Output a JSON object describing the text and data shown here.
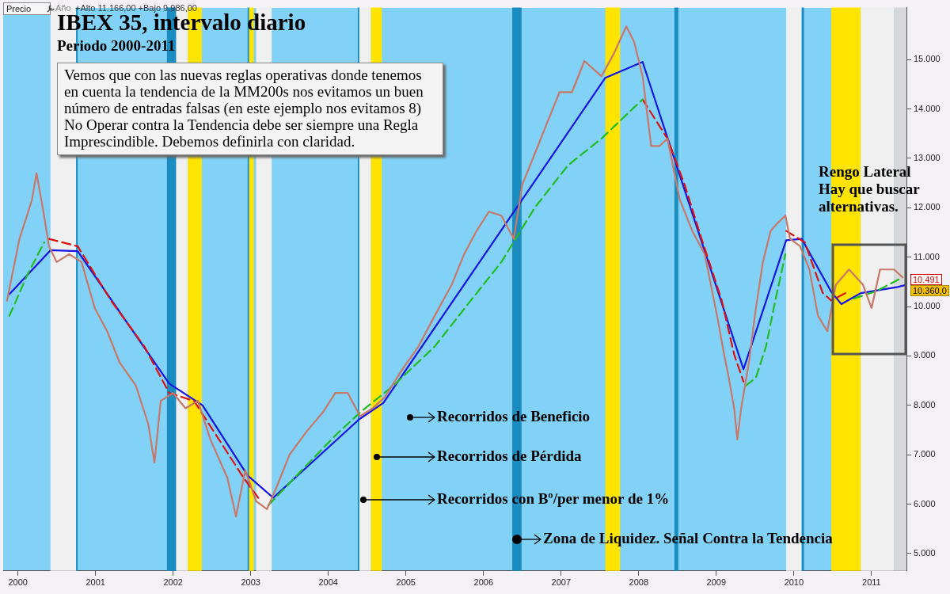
{
  "chart_data": {
    "type": "line",
    "title": "IBEX 35, intervalo diario",
    "subtitle": "Periodo 2000-2011",
    "xlim": [
      1999.81,
      2011.45
    ],
    "ylim": [
      4650,
      16050
    ],
    "xticks": [
      2000,
      2001,
      2002,
      2003,
      2004,
      2005,
      2006,
      2007,
      2008,
      2009,
      2010,
      2011
    ],
    "yticks": [
      {
        "value": 5000,
        "label": "5.000"
      },
      {
        "value": 6000,
        "label": "6.000"
      },
      {
        "value": 7000,
        "label": "7.000"
      },
      {
        "value": 8000,
        "label": "8.000"
      },
      {
        "value": 9000,
        "label": "9.000"
      },
      {
        "value": 10000,
        "label": "10.000"
      },
      {
        "value": 11000,
        "label": "11.000"
      },
      {
        "value": 12000,
        "label": "12.000"
      },
      {
        "value": 13000,
        "label": "13.000"
      },
      {
        "value": 14000,
        "label": "14.000"
      },
      {
        "value": 15000,
        "label": "15.000"
      }
    ],
    "legend": false,
    "marker": "none",
    "series": [
      {
        "type": "line",
        "color": "#c87868",
        "line_style": "solid",
        "x": [
          1999.86,
          2000.02,
          2000.18,
          2000.24,
          2000.32,
          2000.4,
          2000.5,
          2000.66,
          2000.82,
          2000.99,
          2001.15,
          2001.31,
          2001.52,
          2001.68,
          2001.76,
          2001.84,
          2002.0,
          2002.16,
          2002.32,
          2002.48,
          2002.7,
          2002.81,
          2002.93,
          2003.07,
          2003.21,
          2003.34,
          2003.5,
          2003.72,
          2003.93,
          2004.09,
          2004.25,
          2004.41,
          2004.57,
          2004.73,
          2004.95,
          2005.16,
          2005.37,
          2005.59,
          2005.75,
          2005.91,
          2006.07,
          2006.23,
          2006.39,
          2006.5,
          2006.66,
          2006.82,
          2006.98,
          2007.14,
          2007.3,
          2007.52,
          2007.68,
          2007.84,
          2007.94,
          2008.05,
          2008.16,
          2008.27,
          2008.37,
          2008.53,
          2008.69,
          2008.85,
          2009.01,
          2009.1,
          2009.16,
          2009.23,
          2009.27,
          2009.32,
          2009.42,
          2009.51,
          2009.6,
          2009.7,
          2009.79,
          2009.89,
          2009.95,
          2010.08,
          2010.2,
          2010.31,
          2010.43,
          2010.54,
          2010.71,
          2010.89,
          2011.0,
          2011.11,
          2011.29,
          2011.4
        ],
        "values": [
          10120,
          11370,
          12150,
          12700,
          12000,
          11220,
          10900,
          11060,
          10900,
          9970,
          9500,
          8870,
          8400,
          7620,
          6840,
          8090,
          8250,
          7940,
          8090,
          7310,
          6530,
          5750,
          6690,
          6060,
          5900,
          6370,
          7000,
          7470,
          7860,
          8250,
          8250,
          7780,
          7940,
          8170,
          8720,
          9190,
          9810,
          10440,
          11060,
          11530,
          11920,
          11840,
          11370,
          12470,
          13090,
          13720,
          14340,
          14340,
          14970,
          14660,
          15120,
          15670,
          15360,
          14660,
          13250,
          13250,
          13400,
          12160,
          11530,
          11060,
          9810,
          9030,
          8560,
          7940,
          7310,
          7940,
          8870,
          9970,
          10900,
          11530,
          11690,
          11840,
          11370,
          11220,
          10750,
          9810,
          9500,
          10440,
          10750,
          10440,
          9970,
          10750,
          10750,
          10590
        ]
      },
      {
        "type": "line",
        "color": "#22bb22",
        "line_style": "dashed",
        "x": [
          1999.89,
          2000.13,
          2000.34
        ],
        "values": [
          9810,
          10670,
          11300
        ]
      },
      {
        "type": "line",
        "color": "#dd1111",
        "line_style": "dashed",
        "x": [
          2000.4,
          2000.77,
          2001.2,
          2001.63,
          2001.95,
          2002.27,
          2002.59,
          2002.91,
          2003.13
        ],
        "values": [
          11370,
          11220,
          10120,
          9190,
          8250,
          8090,
          7310,
          6530,
          6060
        ]
      },
      {
        "type": "line",
        "color": "#22bb22",
        "line_style": "dashed",
        "x": [
          2003.23,
          2003.66,
          2004.09,
          2004.41,
          2004.84,
          2005.37,
          2005.8,
          2006.23,
          2006.66,
          2007.09,
          2007.52,
          2007.94,
          2008.05
        ],
        "values": [
          5980,
          6690,
          7390,
          7860,
          8400,
          9190,
          10050,
          10900,
          12000,
          12860,
          13400,
          14030,
          14190
        ]
      },
      {
        "type": "line",
        "color": "#dd1111",
        "line_style": "dashed",
        "x": [
          2008.05,
          2008.37,
          2008.59,
          2008.81,
          2009.07,
          2009.23,
          2009.35
        ],
        "values": [
          14190,
          13400,
          12470,
          11370,
          10120,
          9030,
          8480
        ]
      },
      {
        "type": "line",
        "color": "#22bb22",
        "line_style": "dashed",
        "x": [
          2009.38,
          2009.51,
          2009.64,
          2009.76,
          2009.89
        ],
        "values": [
          8400,
          8560,
          9190,
          10120,
          11060
        ]
      },
      {
        "type": "line",
        "color": "#dd1111",
        "line_style": "dashed",
        "x": [
          2009.9,
          2010.14,
          2010.37,
          2010.48,
          2010.71
        ],
        "values": [
          11530,
          11300,
          10280,
          10120,
          10310
        ]
      },
      {
        "type": "line",
        "color": "#22bb22",
        "line_style": "dashed",
        "x": [
          2010.77,
          2011.06,
          2011.4
        ],
        "values": [
          10160,
          10310,
          10590
        ]
      },
      {
        "type": "line",
        "color": "#1414e6",
        "line_style": "solid",
        "x": [
          1999.89,
          2000.42,
          2000.77,
          2001.95,
          2002.38,
          2002.96,
          2003.29,
          2004.4,
          2004.71,
          2007.57,
          2008.05,
          2009.35,
          2009.9,
          2010.1,
          2010.48,
          2010.61,
          2010.86,
          2011.32,
          2011.45
        ],
        "values": [
          10250,
          11140,
          11120,
          8440,
          8000,
          6580,
          6130,
          7720,
          8050,
          14630,
          14950,
          8730,
          11340,
          11370,
          10300,
          10050,
          10270,
          10390,
          10440
        ]
      }
    ],
    "bands": [
      {
        "axis": "x",
        "from": 2000.42,
        "to": 2000.75,
        "color": "#f0f0f0"
      },
      {
        "axis": "x",
        "from": 2000.75,
        "to": 2000.77,
        "color": "#1a8cc0"
      },
      {
        "axis": "x",
        "from": 2001.92,
        "to": 2002.04,
        "color": "#1a8cc0"
      },
      {
        "axis": "x",
        "from": 2002.04,
        "to": 2002.19,
        "color": "#f0f0f0"
      },
      {
        "axis": "x",
        "from": 2002.19,
        "to": 2002.37,
        "color": "#ffe400"
      },
      {
        "axis": "x",
        "from": 2002.96,
        "to": 2002.98,
        "color": "#1a8cc0"
      },
      {
        "axis": "x",
        "from": 2002.98,
        "to": 2003.04,
        "color": "#ffe400"
      },
      {
        "axis": "x",
        "from": 2003.07,
        "to": 2003.27,
        "color": "#f0f0f0"
      },
      {
        "axis": "x",
        "from": 2004.38,
        "to": 2004.4,
        "color": "#1a8cc0"
      },
      {
        "axis": "x",
        "from": 2004.4,
        "to": 2004.55,
        "color": "#f0f0f0"
      },
      {
        "axis": "x",
        "from": 2004.55,
        "to": 2004.69,
        "color": "#ffe400"
      },
      {
        "axis": "x",
        "from": 2006.37,
        "to": 2006.49,
        "color": "#1a8cc0"
      },
      {
        "axis": "x",
        "from": 2007.57,
        "to": 2007.76,
        "color": "#ffe400"
      },
      {
        "axis": "x",
        "from": 2008.46,
        "to": 2008.51,
        "color": "#1a8cc0"
      },
      {
        "axis": "x",
        "from": 2009.9,
        "to": 2010.1,
        "color": "#f0f0f0"
      },
      {
        "axis": "x",
        "from": 2010.1,
        "to": 2010.13,
        "color": "#1a8cc0"
      },
      {
        "axis": "x",
        "from": 2010.48,
        "to": 2010.86,
        "color": "#ffe400"
      },
      {
        "axis": "x",
        "from": 2010.86,
        "to": 2011.29,
        "color": "#f0f0f0"
      },
      {
        "axis": "x",
        "from": 2011.29,
        "to": 2011.45,
        "color": "#d6d8da"
      }
    ],
    "annotations": [
      "Precio",
      "Año",
      "+Alto 11.166,00 +Bajo 9.986,00",
      "Vemos que con las nuevas reglas operativas donde tenemos en cuenta la tendencia de la MM200s nos evitamos un buen número de entradas falsas (en este ejemplo nos evitamos 8)",
      "No Operar contra la Tendencia debe ser siempre una Regla Imprescindible. Debemos definirla con claridad.",
      "Rengo Lateral\nHay que buscar\nalternativas.",
      {
        "text": "Recorridos de Beneficio",
        "x": 2005.05,
        "y": 7750
      },
      {
        "text": "Recorridos de Pérdida",
        "x": 2004.63,
        "y": 6950
      },
      {
        "text": "Recorridos con Bº/per menor de 1%",
        "x": 2004.45,
        "y": 6090
      },
      {
        "text": "Zona de Liquidez. Señal Contra la Tendencia",
        "x": 2006.43,
        "y": 5280
      },
      "10.491",
      "10.360,0"
    ]
  }
}
